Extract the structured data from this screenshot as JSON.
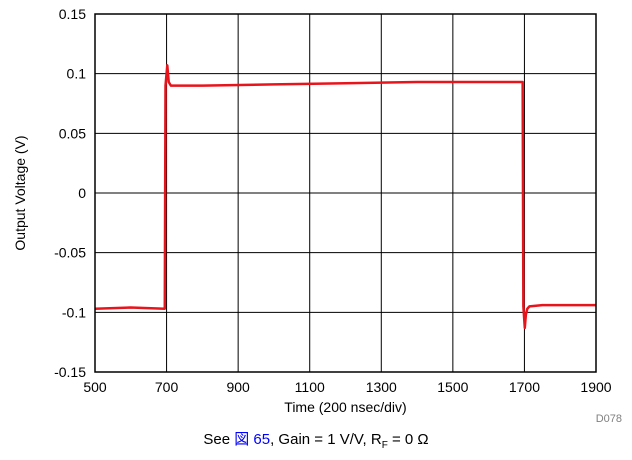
{
  "chart_data": {
    "type": "line",
    "xlabel": "Time (200 nsec/div)",
    "ylabel": "Output Voltage (V)",
    "xlim": [
      500,
      1900
    ],
    "ylim": [
      -0.15,
      0.15
    ],
    "x_ticks": [
      "500",
      "700",
      "900",
      "1100",
      "1300",
      "1500",
      "1700",
      "1900"
    ],
    "y_ticks": [
      "0.15",
      "0.1",
      "0.05",
      "0",
      "-0.05",
      "-0.1",
      "-0.15"
    ],
    "grid": true,
    "series": [
      {
        "color": "#e8141c",
        "x": [
          500,
          600,
          695,
          697,
          702,
          706,
          712,
          800,
          1000,
          1200,
          1400,
          1600,
          1695,
          1697,
          1701,
          1704,
          1708,
          1714,
          1750,
          1800,
          1900
        ],
        "y": [
          -0.097,
          -0.096,
          -0.097,
          0.09,
          0.107,
          0.093,
          0.09,
          0.09,
          0.091,
          0.092,
          0.093,
          0.093,
          0.093,
          -0.095,
          -0.113,
          -0.102,
          -0.097,
          -0.095,
          -0.094,
          -0.094,
          -0.094
        ]
      }
    ],
    "code_label": "D078"
  },
  "caption": {
    "prefix": "See ",
    "link": "図 65",
    "middle": ", Gain = 1 V/V, R",
    "sub": "F",
    "suffix": " = 0 Ω"
  }
}
